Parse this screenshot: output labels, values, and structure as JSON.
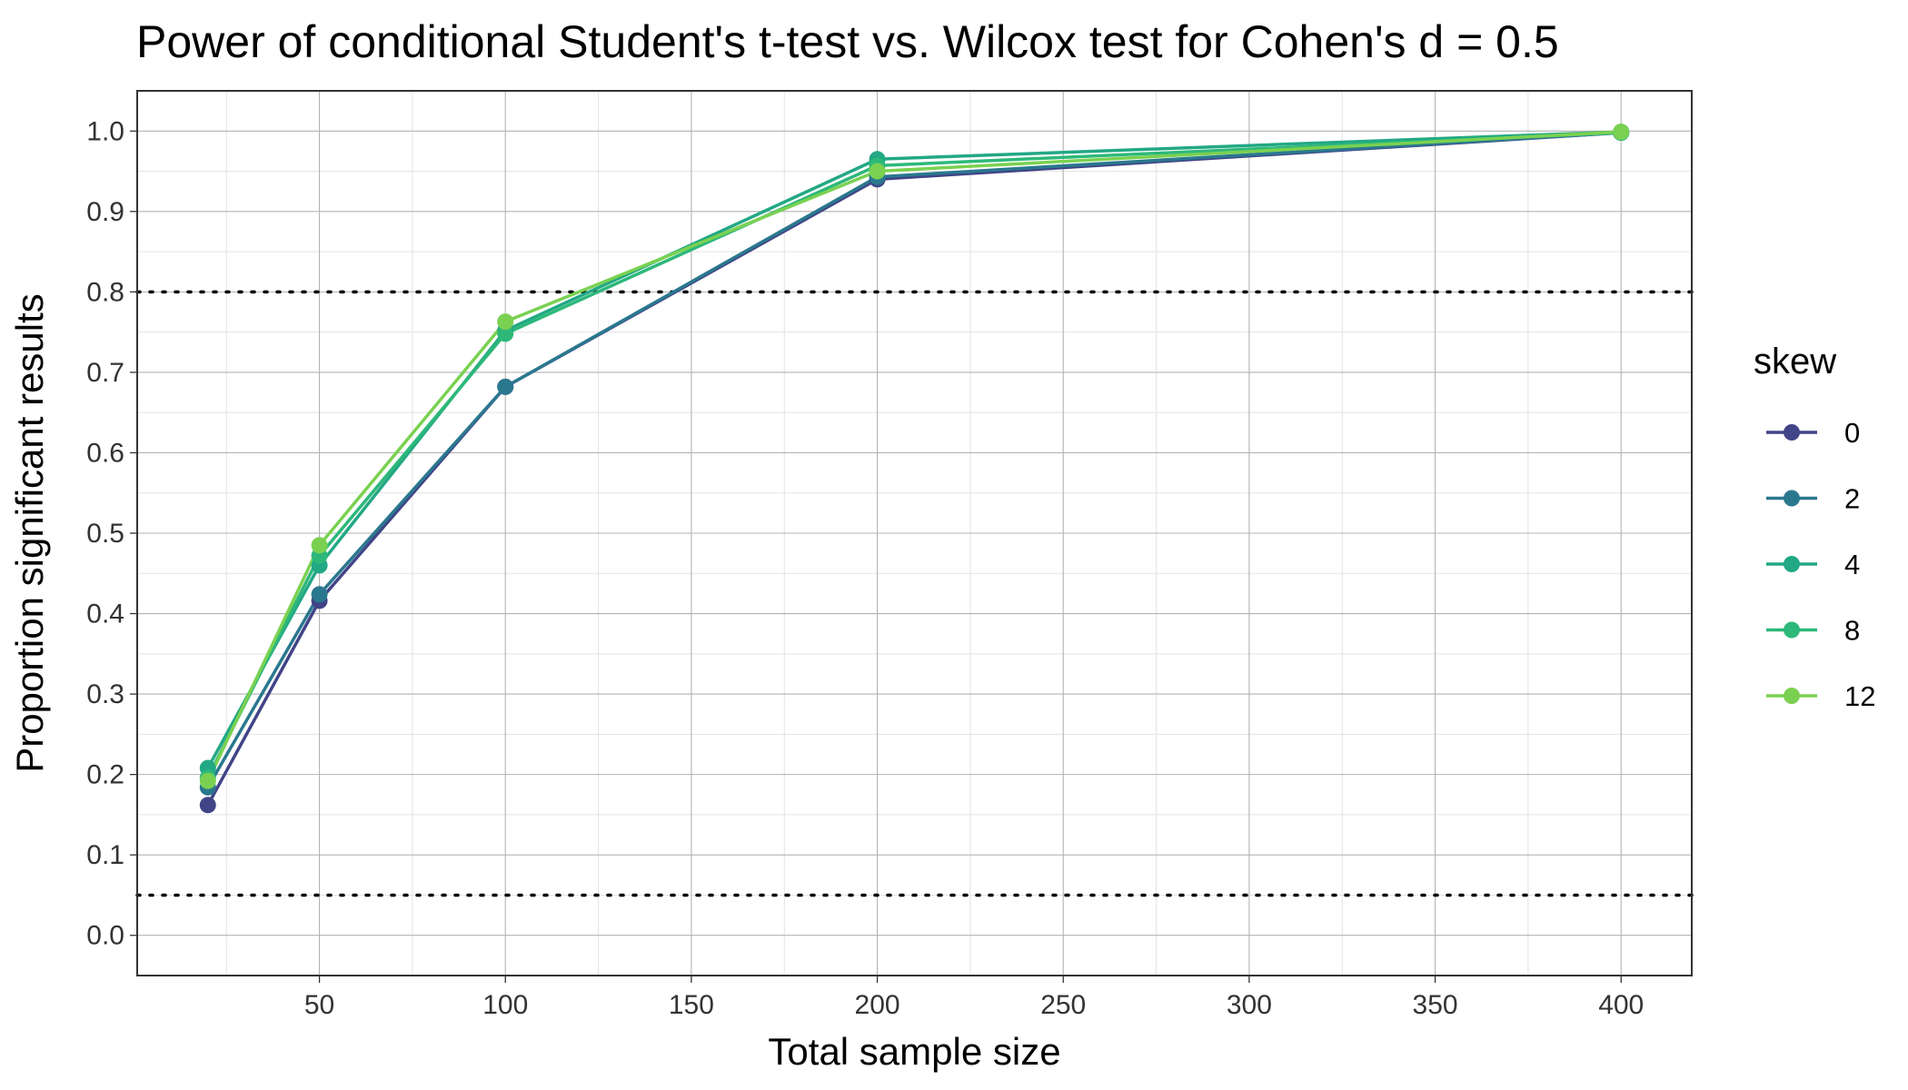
{
  "chart_data": {
    "type": "line",
    "title": "Power of conditional Student's t-test vs. Wilcox test for Cohen's d = 0.5",
    "xlabel": "Total sample size",
    "ylabel": "Proportion significant results",
    "x": [
      20,
      50,
      100,
      200,
      400
    ],
    "xlim": [
      1,
      419
    ],
    "ylim": [
      -0.05,
      1.05
    ],
    "x_ticks": [
      50,
      100,
      150,
      200,
      250,
      300,
      350,
      400
    ],
    "x_minor_ticks": [
      25,
      75,
      125,
      175,
      225,
      275,
      325,
      375
    ],
    "y_ticks": [
      0.0,
      0.1,
      0.2,
      0.3,
      0.4,
      0.5,
      0.6,
      0.7,
      0.8,
      0.9,
      1.0
    ],
    "y_tick_labels": [
      "0.0",
      "0.1",
      "0.2",
      "0.3",
      "0.4",
      "0.5",
      "0.6",
      "0.7",
      "0.8",
      "0.9",
      "1.0"
    ],
    "x_tick_labels": [
      "50",
      "100",
      "150",
      "200",
      "250",
      "300",
      "350",
      "400"
    ],
    "reference_lines": [
      0.05,
      0.8
    ],
    "grid": true,
    "legend": {
      "title": "skew",
      "position": "right"
    },
    "series": [
      {
        "name": "0",
        "color": "#414487",
        "values": [
          0.162,
          0.416,
          0.682,
          0.94,
          0.998
        ]
      },
      {
        "name": "2",
        "color": "#2A788E",
        "values": [
          0.184,
          0.424,
          0.682,
          0.943,
          0.998
        ]
      },
      {
        "name": "4",
        "color": "#22A884",
        "values": [
          0.208,
          0.46,
          0.752,
          0.965,
          0.999
        ]
      },
      {
        "name": "8",
        "color": "#2DB87A",
        "values": [
          0.196,
          0.472,
          0.748,
          0.957,
          0.998
        ]
      },
      {
        "name": "12",
        "color": "#7AD151",
        "values": [
          0.192,
          0.485,
          0.763,
          0.95,
          0.999
        ]
      }
    ]
  }
}
